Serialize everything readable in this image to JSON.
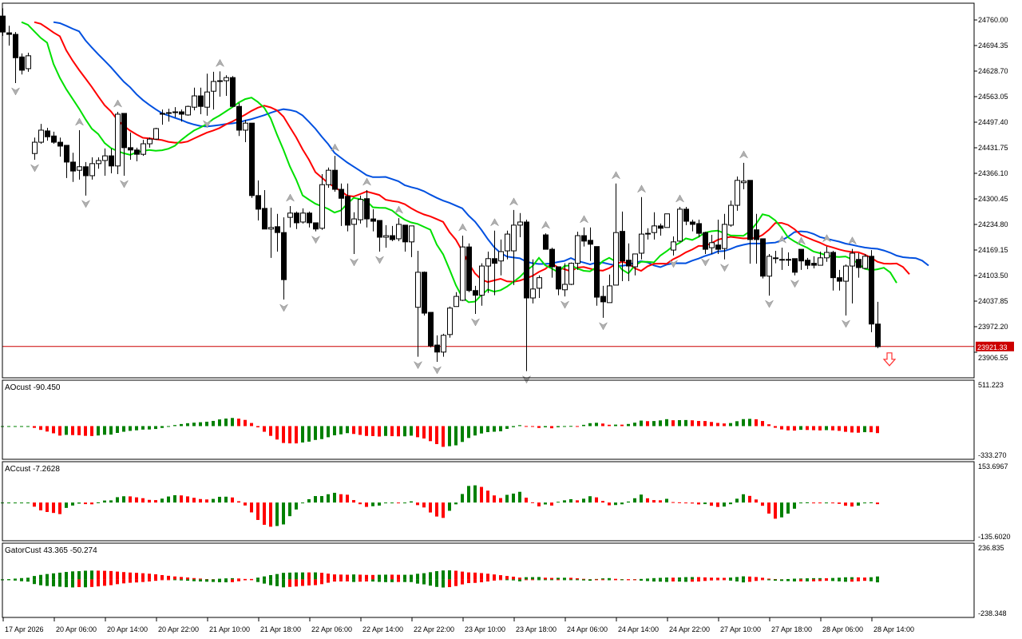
{
  "chart_data": {
    "type": "candlestick",
    "symbol_timeframe": "H1",
    "current_price": {
      "value": 23921.33,
      "label": "23921.33",
      "color": "#cc0000"
    },
    "price_axis": {
      "range": [
        23880,
        24790
      ],
      "ticks": [
        "24760.00",
        "24694.35",
        "24628.70",
        "24563.05",
        "24497.40",
        "24431.75",
        "24366.10",
        "24300.45",
        "24234.80",
        "24169.15",
        "24103.50",
        "24037.85",
        "23972.20",
        "23906.55"
      ]
    },
    "time_axis": {
      "labels": [
        "17 Apr 2026",
        "20 Apr 06:00",
        "20 Apr 14:00",
        "20 Apr 22:00",
        "21 Apr 10:00",
        "21 Apr 18:00",
        "22 Apr 06:00",
        "22 Apr 14:00",
        "22 Apr 22:00",
        "23 Apr 10:00",
        "23 Apr 18:00",
        "24 Apr 06:00",
        "24 Apr 14:00",
        "24 Apr 22:00",
        "27 Apr 10:00",
        "27 Apr 18:00",
        "28 Apr 06:00",
        "28 Apr 14:00"
      ],
      "bars_per_label": 8
    },
    "ohlc_fields": [
      "open",
      "close",
      "high",
      "low"
    ],
    "ohlc": [
      [
        24770,
        24729,
        24790,
        24719
      ],
      [
        24727,
        24723,
        24745,
        24694
      ],
      [
        24723,
        24663,
        24729,
        24598
      ],
      [
        24665,
        24631,
        24674,
        24620
      ],
      [
        24635,
        24668,
        24676,
        24627
      ],
      [
        24417,
        24446,
        24458,
        24401
      ],
      [
        24446,
        24477,
        24493,
        24442
      ],
      [
        24475,
        24460,
        24483,
        24450
      ],
      [
        24462,
        24446,
        24473,
        24442
      ],
      [
        24446,
        24436,
        24458,
        24409
      ],
      [
        24438,
        24395,
        24438,
        24354
      ],
      [
        24395,
        24372,
        24419,
        24344
      ],
      [
        24374,
        24383,
        24477,
        24350
      ],
      [
        24383,
        24360,
        24395,
        24309
      ],
      [
        24360,
        24391,
        24407,
        24350
      ],
      [
        24391,
        24399,
        24407,
        24378
      ],
      [
        24399,
        24411,
        24430,
        24360
      ],
      [
        24411,
        24385,
        24430,
        24366
      ],
      [
        24385,
        24518,
        24524,
        24364
      ],
      [
        24520,
        24432,
        24520,
        24360
      ],
      [
        24432,
        24426,
        24471,
        24401
      ],
      [
        24426,
        24415,
        24432,
        24397
      ],
      [
        24415,
        24442,
        24452,
        24411
      ],
      [
        24442,
        24454,
        24458,
        24432
      ],
      [
        24454,
        24481,
        24483,
        24452
      ],
      [
        24520,
        24520,
        24530,
        24491
      ],
      [
        24522,
        24522,
        24532,
        24499
      ],
      [
        24524,
        24524,
        24536,
        24510
      ],
      [
        24524,
        24518,
        24530,
        24499
      ],
      [
        24516,
        24538,
        24540,
        24514
      ],
      [
        24536,
        24565,
        24586,
        24528
      ],
      [
        24565,
        24538,
        24586,
        24518
      ],
      [
        24536,
        24575,
        24622,
        24514
      ],
      [
        24577,
        24602,
        24627,
        24530
      ],
      [
        24604,
        24604,
        24628,
        24563
      ],
      [
        24604,
        24612,
        24618,
        24565
      ],
      [
        24612,
        24538,
        24616,
        24536
      ],
      [
        24538,
        24477,
        24547,
        24462
      ],
      [
        24477,
        24495,
        24503,
        24446
      ],
      [
        24495,
        24309,
        24495,
        24303
      ],
      [
        24309,
        24274,
        24348,
        24245
      ],
      [
        24276,
        24223,
        24323,
        24223
      ],
      [
        24223,
        24227,
        24278,
        24149
      ],
      [
        24229,
        24214,
        24262,
        24165
      ],
      [
        24214,
        24093,
        24253,
        24042
      ],
      [
        24253,
        24264,
        24282,
        24227
      ],
      [
        24264,
        24239,
        24268,
        24223
      ],
      [
        24241,
        24264,
        24276,
        24237
      ],
      [
        24264,
        24239,
        24268,
        24227
      ],
      [
        24239,
        24223,
        24239,
        24217
      ],
      [
        24225,
        24337,
        24364,
        24221
      ],
      [
        24337,
        24374,
        24381,
        24329
      ],
      [
        24374,
        24325,
        24411,
        24319
      ],
      [
        24325,
        24302,
        24340,
        24231
      ],
      [
        24307,
        24233,
        24340,
        24217
      ],
      [
        24235,
        24249,
        24266,
        24159
      ],
      [
        24247,
        24299,
        24309,
        24237
      ],
      [
        24301,
        24249,
        24323,
        24227
      ],
      [
        24249,
        24243,
        24274,
        24217
      ],
      [
        24245,
        24202,
        24245,
        24165
      ],
      [
        24202,
        24206,
        24233,
        24175
      ],
      [
        24206,
        24196,
        24231,
        24192
      ],
      [
        24198,
        24235,
        24251,
        24192
      ],
      [
        24233,
        24190,
        24233,
        24165
      ],
      [
        24190,
        24231,
        24231,
        24151
      ],
      [
        24022,
        24112,
        24167,
        23895
      ],
      [
        24112,
        24007,
        24114,
        24001
      ],
      [
        24009,
        23923,
        24009,
        23919
      ],
      [
        23925,
        23907,
        23950,
        23882
      ],
      [
        23907,
        23950,
        23954,
        23895
      ],
      [
        23952,
        24020,
        24024,
        23944
      ],
      [
        24024,
        24050,
        24061,
        24024
      ],
      [
        24040,
        24177,
        24206,
        24038
      ],
      [
        24177,
        24065,
        24186,
        24061
      ],
      [
        24065,
        24053,
        24077,
        24005
      ],
      [
        24053,
        24128,
        24135,
        24026
      ],
      [
        24128,
        24147,
        24165,
        24059
      ],
      [
        24147,
        24135,
        24219,
        24053
      ],
      [
        24141,
        24165,
        24196,
        24104
      ],
      [
        24167,
        24210,
        24219,
        24145
      ],
      [
        24167,
        24233,
        24272,
        24079
      ],
      [
        24233,
        24241,
        24264,
        24202
      ],
      [
        24241,
        24046,
        24247,
        23858
      ],
      [
        24046,
        24069,
        24145,
        24032
      ],
      [
        24071,
        24098,
        24104,
        24046
      ],
      [
        24208,
        24171,
        24212,
        24171
      ],
      [
        24171,
        24126,
        24175,
        24098
      ],
      [
        24126,
        24069,
        24126,
        24053
      ],
      [
        24067,
        24081,
        24135,
        24050
      ],
      [
        24081,
        24135,
        24137,
        24079
      ],
      [
        24135,
        24206,
        24216,
        24118
      ],
      [
        24206,
        24192,
        24227,
        24178
      ],
      [
        24194,
        24184,
        24227,
        24141
      ],
      [
        24178,
        24048,
        24178,
        24026
      ],
      [
        24050,
        24036,
        24077,
        23995
      ],
      [
        24034,
        24077,
        24106,
        24034
      ],
      [
        24079,
        24214,
        24340,
        24079
      ],
      [
        24217,
        24141,
        24268,
        24089
      ],
      [
        24143,
        24128,
        24186,
        24089
      ],
      [
        24126,
        24159,
        24159,
        24104
      ],
      [
        24161,
        24210,
        24305,
        24145
      ],
      [
        24212,
        24212,
        24225,
        24196
      ],
      [
        24214,
        24231,
        24266,
        24196
      ],
      [
        24231,
        24225,
        24237,
        24206
      ],
      [
        24227,
        24262,
        24262,
        24227
      ],
      [
        24169,
        24190,
        24204,
        24155
      ],
      [
        24192,
        24274,
        24280,
        24190
      ],
      [
        24274,
        24243,
        24280,
        24233
      ],
      [
        24241,
        24235,
        24247,
        24217
      ],
      [
        24237,
        24212,
        24247,
        24202
      ],
      [
        24214,
        24171,
        24216,
        24159
      ],
      [
        24175,
        24188,
        24208,
        24159
      ],
      [
        24182,
        24171,
        24247,
        24159
      ],
      [
        24173,
        24235,
        24262,
        24145
      ],
      [
        24233,
        24284,
        24296,
        24229
      ],
      [
        24284,
        24348,
        24358,
        24270
      ],
      [
        24342,
        24346,
        24393,
        24325
      ],
      [
        24348,
        24196,
        24348,
        24134
      ],
      [
        24221,
        24196,
        24262,
        24134
      ],
      [
        24198,
        24102,
        24198,
        24096
      ],
      [
        24102,
        24153,
        24159,
        24052
      ],
      [
        24149,
        24149,
        24167,
        24135
      ],
      [
        24145,
        24145,
        24175,
        24118
      ],
      [
        24145,
        24143,
        24163,
        24128
      ],
      [
        24147,
        24112,
        24147,
        24104
      ],
      [
        24171,
        24141,
        24171,
        24118
      ],
      [
        24143,
        24130,
        24149,
        24120
      ],
      [
        24135,
        24130,
        24153,
        24122
      ],
      [
        24130,
        24149,
        24165,
        24130
      ],
      [
        24149,
        24163,
        24178,
        24139
      ],
      [
        24163,
        24098,
        24167,
        24065
      ],
      [
        24098,
        24089,
        24118,
        24065
      ],
      [
        24089,
        24128,
        24132,
        24001
      ],
      [
        24128,
        24161,
        24172,
        24032
      ],
      [
        24145,
        24124,
        24161,
        24098
      ],
      [
        24122,
        24153,
        24159,
        24120
      ],
      [
        24153,
        23979,
        24169,
        23958
      ],
      [
        23979,
        23921,
        24036,
        23917
      ]
    ],
    "alligator": {
      "jaw": {
        "period": 13,
        "shift": 8,
        "color": "#0050e0"
      },
      "teeth": {
        "period": 8,
        "shift": 5,
        "color": "#ff0000"
      },
      "lips": {
        "period": 5,
        "shift": 3,
        "color": "#00e000"
      }
    },
    "indicators": [
      {
        "id": "ao",
        "label": "AOcust -90.450",
        "range": [
          -333.27,
          511.223
        ],
        "axis_max": "511.223",
        "axis_min": "-333.270"
      },
      {
        "id": "ac",
        "label": "ACcust -7.2628",
        "range": [
          -135.602,
          153.6967
        ],
        "axis_max": "153.6967",
        "axis_min": "-135.6020"
      },
      {
        "id": "gator",
        "label": "GatorCust 43.365 -50.274",
        "range": [
          -238.348,
          236.835
        ],
        "axis_max": "236.835",
        "axis_min": "-238.348"
      }
    ],
    "colors": {
      "up": "#008000",
      "down": "#ff0000",
      "signal_arrow": "#ff3030"
    }
  }
}
